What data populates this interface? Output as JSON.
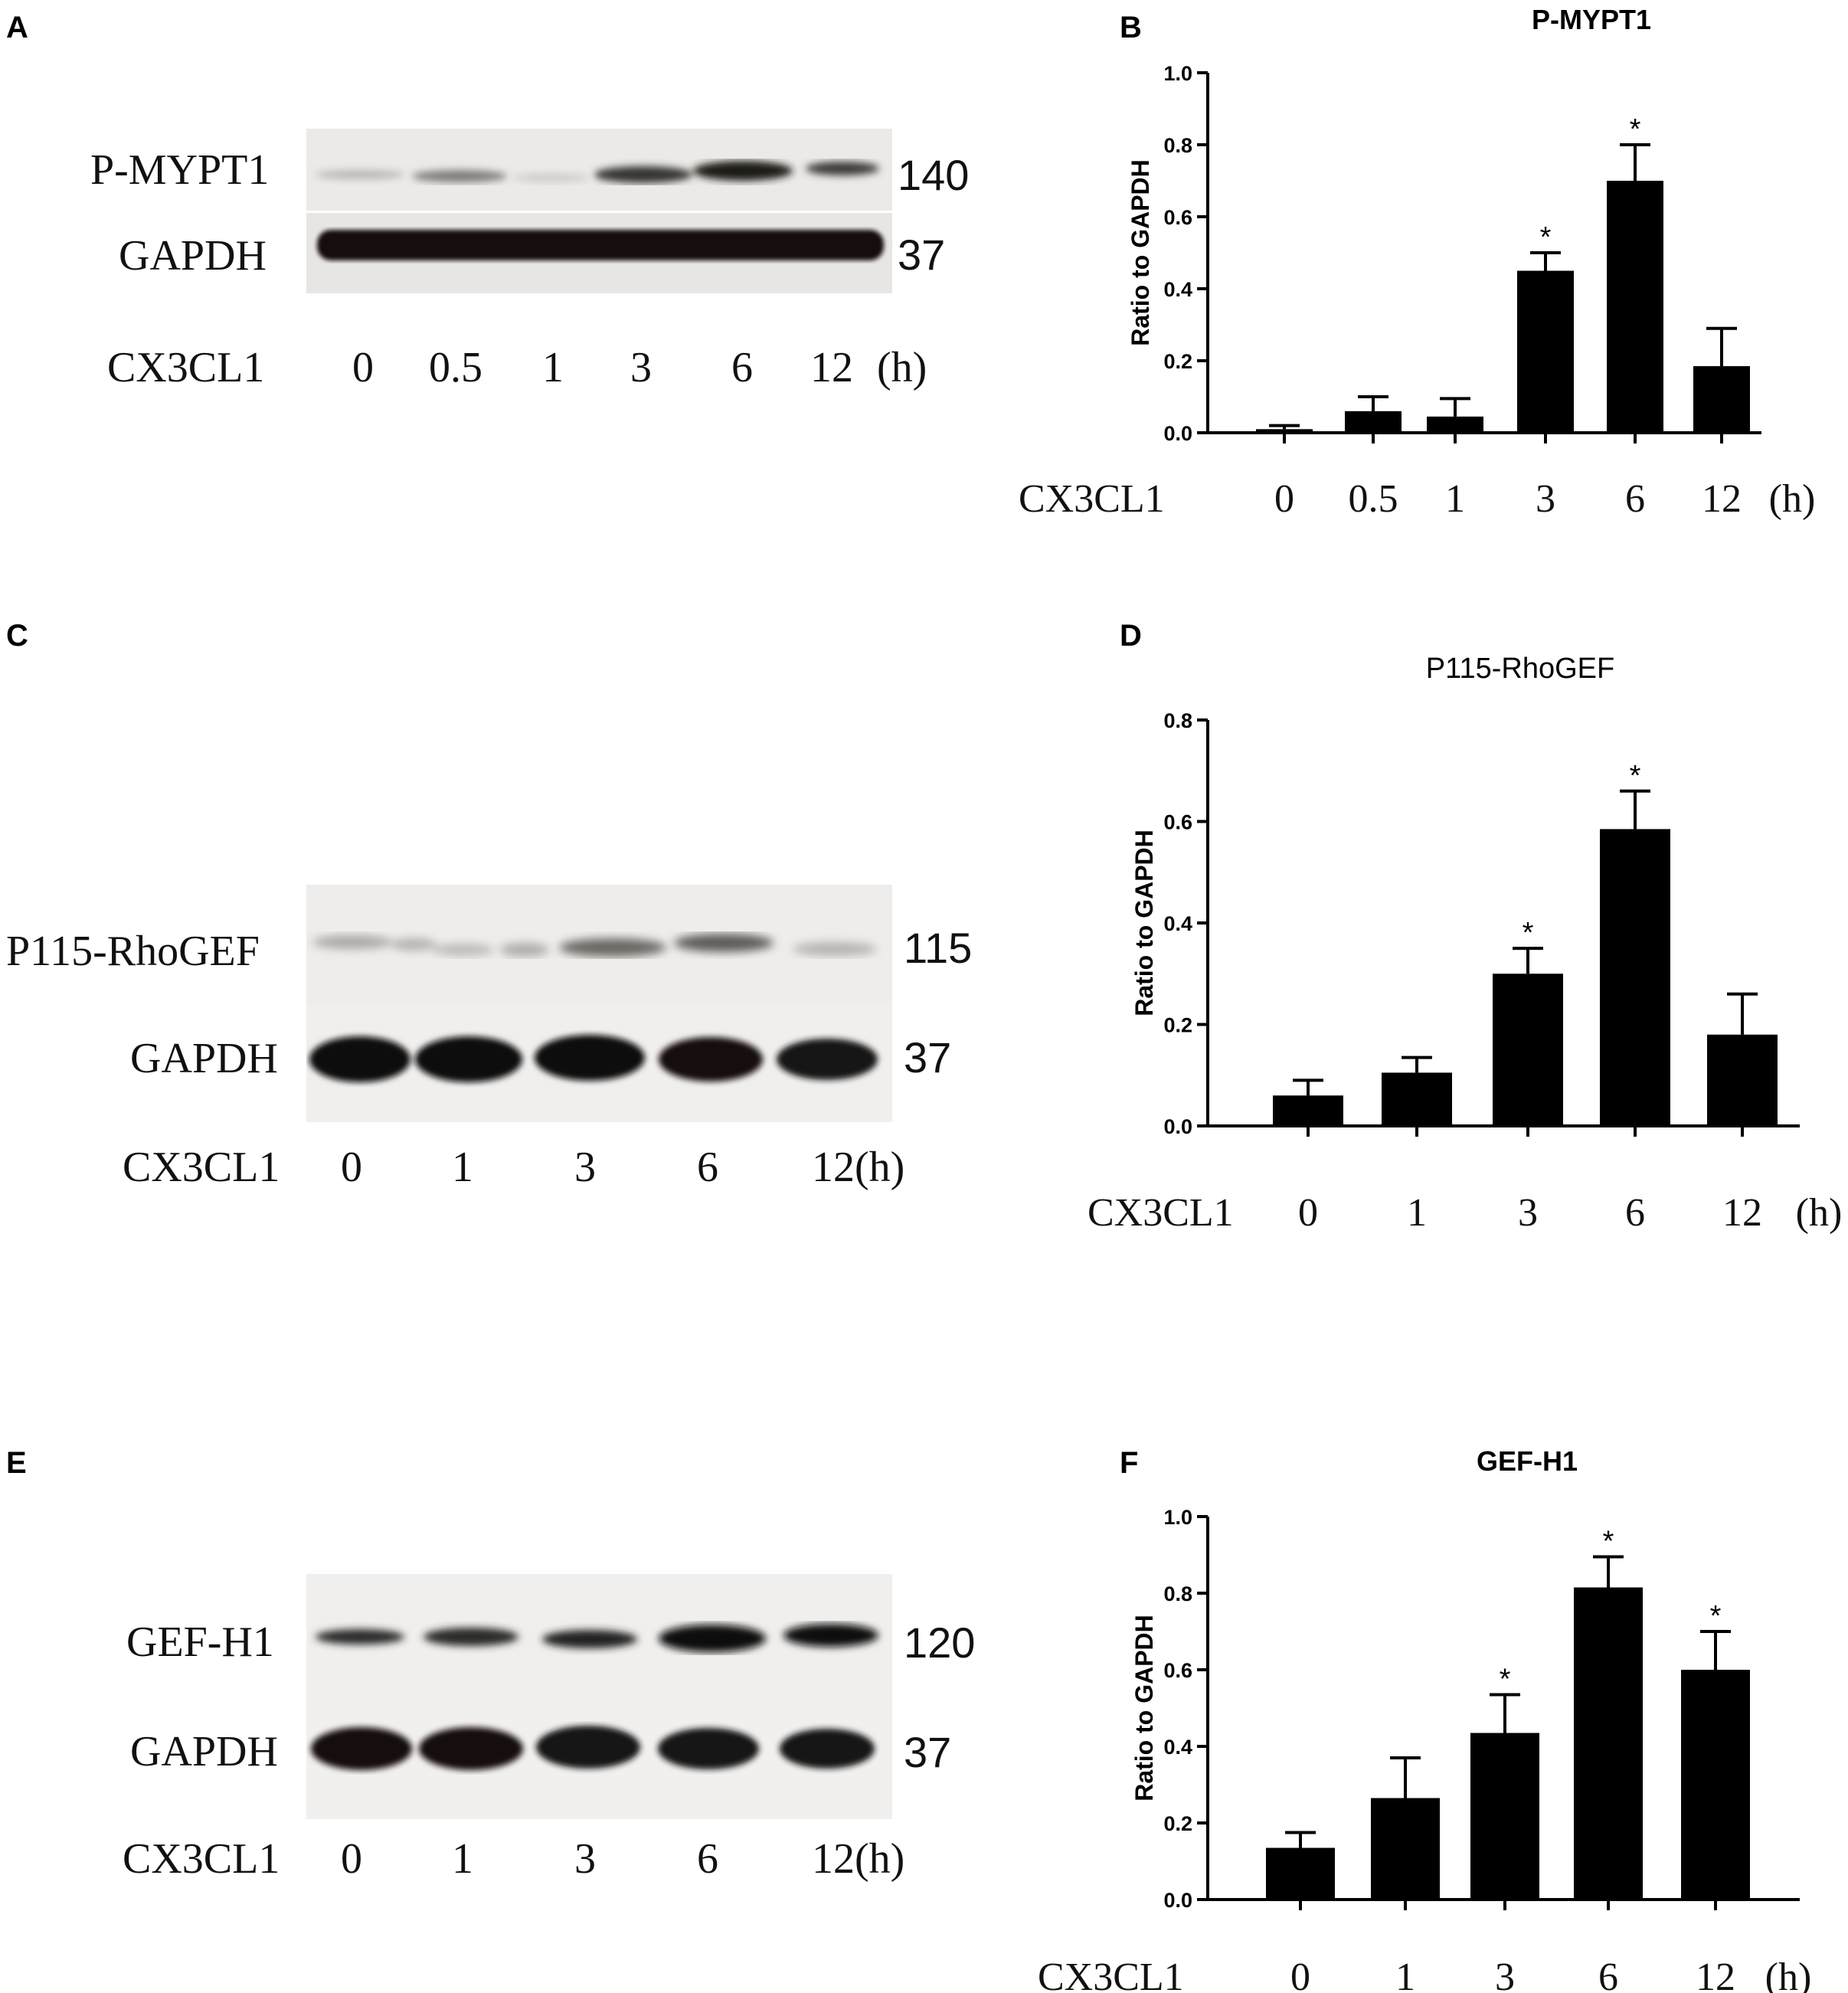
{
  "panels": {
    "A": "A",
    "B": "B",
    "C": "C",
    "D": "D",
    "E": "E",
    "F": "F"
  },
  "blot_A": {
    "rows": [
      "P-MYPT1",
      "GAPDH"
    ],
    "mw": [
      "140",
      "37"
    ],
    "treatment": "CX3CL1",
    "lanes": [
      "0",
      "0.5",
      "1",
      "3",
      "6",
      "12"
    ],
    "unit": "(h)"
  },
  "blot_C": {
    "rows": [
      "P115-RhoGEF",
      "GAPDH"
    ],
    "mw": [
      "115",
      "37"
    ],
    "treatment": "CX3CL1",
    "lanes": [
      "0",
      "1",
      "3",
      "6",
      "12(h)"
    ]
  },
  "blot_E": {
    "rows": [
      "GEF-H1",
      "GAPDH"
    ],
    "mw": [
      "120",
      "37"
    ],
    "treatment": "CX3CL1",
    "lanes": [
      "0",
      "1",
      "3",
      "6",
      "12(h)"
    ]
  },
  "chart_data": [
    {
      "type": "bar",
      "title": "P-MYPT1",
      "ylabel": "Ratio to GAPDH",
      "xlabel": "CX3CL1",
      "x_unit": "(h)",
      "categories": [
        "0",
        "0.5",
        "1",
        "3",
        "6",
        "12"
      ],
      "values": [
        0.01,
        0.06,
        0.045,
        0.45,
        0.7,
        0.185
      ],
      "errors": [
        0.01,
        0.04,
        0.05,
        0.05,
        0.1,
        0.105
      ],
      "significance": [
        "",
        "",
        "",
        "*",
        "*",
        ""
      ],
      "ylim": [
        0,
        1.0
      ],
      "yticks": [
        "0.0",
        "0.2",
        "0.4",
        "0.6",
        "0.8",
        "1.0"
      ]
    },
    {
      "type": "bar",
      "title": "P115-RhoGEF",
      "ylabel": "Ratio to GAPDH",
      "xlabel": "CX3CL1",
      "x_unit": "(h)",
      "categories": [
        "0",
        "1",
        "3",
        "6",
        "12"
      ],
      "values": [
        0.06,
        0.105,
        0.3,
        0.585,
        0.18
      ],
      "errors": [
        0.03,
        0.03,
        0.05,
        0.075,
        0.08
      ],
      "significance": [
        "",
        "",
        "*",
        "*",
        ""
      ],
      "ylim": [
        0,
        0.8
      ],
      "yticks": [
        "0.0",
        "0.2",
        "0.4",
        "0.6",
        "0.8"
      ]
    },
    {
      "type": "bar",
      "title": "GEF-H1",
      "ylabel": "Ratio to GAPDH",
      "xlabel": "CX3CL1",
      "x_unit": "(h)",
      "categories": [
        "0",
        "1",
        "3",
        "6",
        "12"
      ],
      "values": [
        0.135,
        0.265,
        0.435,
        0.815,
        0.6
      ],
      "errors": [
        0.04,
        0.105,
        0.1,
        0.08,
        0.1
      ],
      "significance": [
        "",
        "",
        "*",
        "*",
        "*"
      ],
      "ylim": [
        0,
        1.0
      ],
      "yticks": [
        "0.0",
        "0.2",
        "0.4",
        "0.6",
        "0.8",
        "1.0"
      ]
    }
  ]
}
